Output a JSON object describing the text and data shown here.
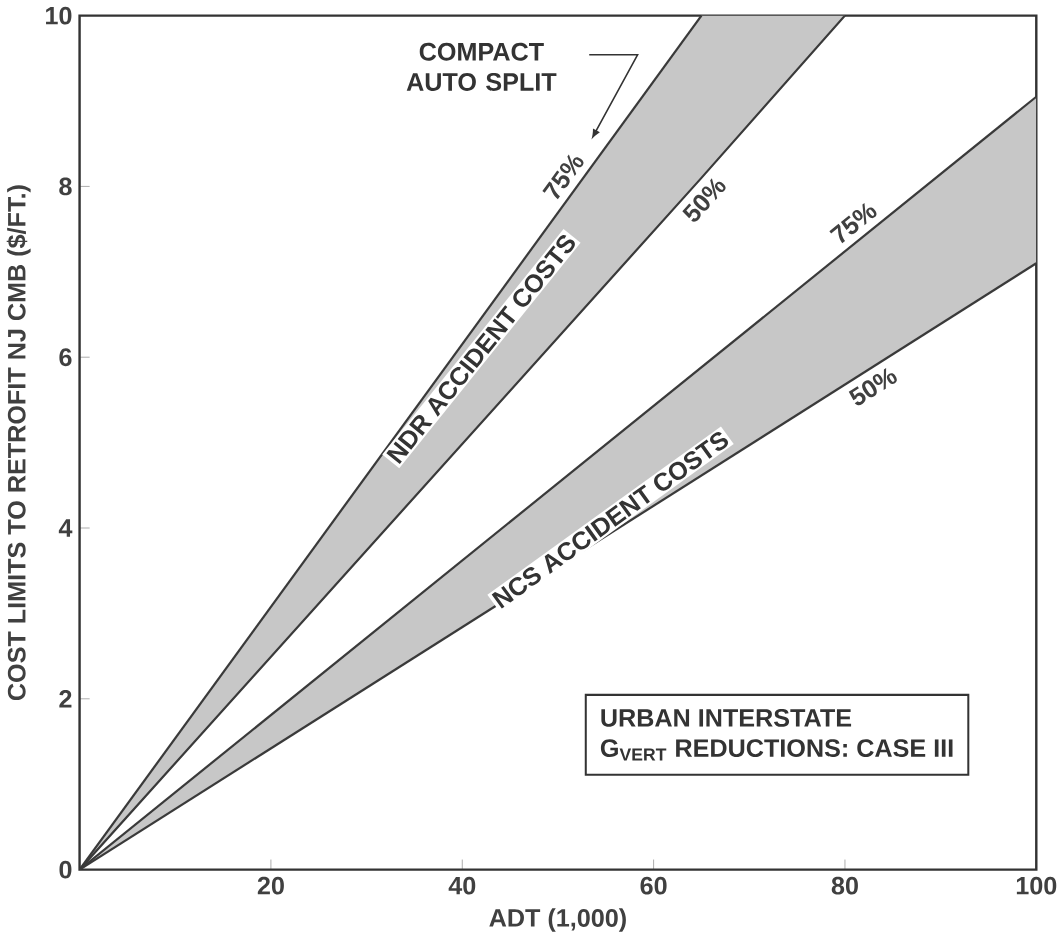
{
  "chart_data": {
    "type": "line",
    "xlabel": "ADT (1,000)",
    "ylabel": "COST LIMITS TO RETROFIT NJ CMB ($/FT.)",
    "xlim": [
      0,
      100
    ],
    "ylim": [
      0,
      10
    ],
    "xticks": [
      {
        "value": 0,
        "label": null
      },
      20,
      40,
      60,
      80,
      100
    ],
    "yticks": [
      0,
      2,
      4,
      6,
      8,
      10
    ],
    "marker": "none",
    "line_style": "solid",
    "series": [
      {
        "name": "75%",
        "color": "#3a3a3a",
        "x": [
          0,
          65
        ],
        "values": [
          0,
          10
        ]
      },
      {
        "name": "50%",
        "color": "#3a3a3a",
        "x": [
          0,
          65,
          80
        ],
        "values": [
          0,
          8.1,
          10
        ],
        "lower": [
          0,
          8.1,
          10
        ],
        "upper": [
          0,
          10,
          10
        ]
      },
      {
        "name": "75%",
        "color": "#3a3a3a",
        "x": [
          0,
          100
        ],
        "values": [
          0,
          9.05
        ]
      },
      {
        "name": "50%",
        "color": "#3a3a3a",
        "x": [
          0,
          100
        ],
        "values": [
          0,
          7.1
        ],
        "lower": [
          0,
          7.1
        ],
        "upper": [
          0,
          9.05
        ]
      }
    ],
    "annotations": [
      "NDR ACCIDENT COSTS",
      "NCS ACCIDENT COSTS",
      "COMPACT AUTO SPLIT",
      "URBAN INTERSTATE",
      "G$_{VERT}$ REDUCTIONS: CASE III"
    ]
  }
}
